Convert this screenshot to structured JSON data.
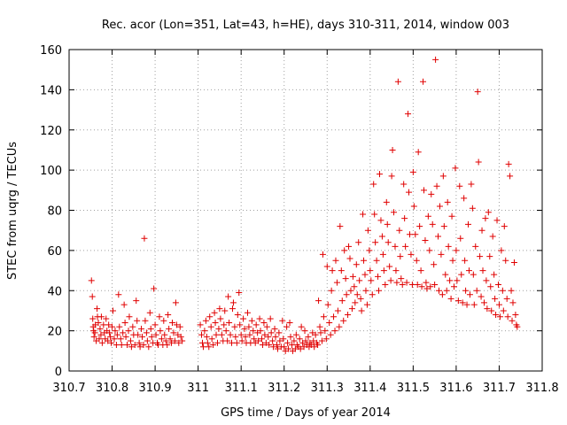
{
  "chart_data": {
    "type": "scatter",
    "title": "Rec. acor (Lon=351, Lat=43, h=HE), days 310-311, 2014, window 003",
    "xlabel": "GPS time / Days of year 2014",
    "ylabel": "STEC from uqrg / TECUs",
    "xlim": [
      310.7,
      311.8
    ],
    "ylim": [
      0,
      160
    ],
    "xticks": [
      310.7,
      310.8,
      310.9,
      311,
      311.1,
      311.2,
      311.3,
      311.4,
      311.5,
      311.6,
      311.7,
      311.8
    ],
    "xtick_labels": [
      "310.7",
      "310.8",
      "310.9",
      "311",
      "311.1",
      "311.2",
      "311.3",
      "311.4",
      "311.5",
      "311.6",
      "311.7",
      "311.8"
    ],
    "yticks": [
      0,
      20,
      40,
      60,
      80,
      100,
      120,
      140,
      160
    ],
    "ytick_labels": [
      "0",
      "20",
      "40",
      "60",
      "80",
      "100",
      "120",
      "140",
      "160"
    ],
    "grid": true,
    "marker": "plus",
    "color": "#e00000",
    "points": [
      [
        310.752,
        45
      ],
      [
        310.754,
        37
      ],
      [
        310.755,
        26
      ],
      [
        310.756,
        22
      ],
      [
        310.757,
        20
      ],
      [
        310.758,
        17
      ],
      [
        310.76,
        19
      ],
      [
        310.761,
        23
      ],
      [
        310.763,
        15
      ],
      [
        310.765,
        31
      ],
      [
        310.766,
        27
      ],
      [
        310.768,
        24
      ],
      [
        310.77,
        16
      ],
      [
        310.772,
        21
      ],
      [
        310.774,
        18
      ],
      [
        310.775,
        27
      ],
      [
        310.777,
        14
      ],
      [
        310.78,
        23
      ],
      [
        310.782,
        19
      ],
      [
        310.784,
        16
      ],
      [
        310.786,
        26
      ],
      [
        310.788,
        20
      ],
      [
        310.79,
        15
      ],
      [
        310.792,
        23
      ],
      [
        310.794,
        19
      ],
      [
        310.796,
        17
      ],
      [
        310.798,
        14
      ],
      [
        310.8,
        22
      ],
      [
        310.802,
        30
      ],
      [
        310.805,
        16
      ],
      [
        310.807,
        20
      ],
      [
        310.81,
        13
      ],
      [
        310.812,
        18
      ],
      [
        310.815,
        38
      ],
      [
        310.817,
        22
      ],
      [
        310.82,
        16
      ],
      [
        310.822,
        13
      ],
      [
        310.825,
        19
      ],
      [
        310.828,
        33
      ],
      [
        310.83,
        24
      ],
      [
        310.832,
        17
      ],
      [
        310.835,
        13
      ],
      [
        310.838,
        20
      ],
      [
        310.84,
        27
      ],
      [
        310.843,
        15
      ],
      [
        310.845,
        12
      ],
      [
        310.848,
        22
      ],
      [
        310.85,
        18
      ],
      [
        310.853,
        13
      ],
      [
        310.856,
        35
      ],
      [
        310.858,
        25
      ],
      [
        310.86,
        18
      ],
      [
        310.863,
        14
      ],
      [
        310.865,
        12
      ],
      [
        310.868,
        21
      ],
      [
        310.87,
        17
      ],
      [
        310.873,
        13
      ],
      [
        310.875,
        66
      ],
      [
        310.877,
        25
      ],
      [
        310.88,
        19
      ],
      [
        310.882,
        15
      ],
      [
        310.885,
        12
      ],
      [
        310.888,
        29
      ],
      [
        310.89,
        21
      ],
      [
        310.892,
        17
      ],
      [
        310.895,
        14
      ],
      [
        310.897,
        41
      ],
      [
        310.9,
        23
      ],
      [
        310.902,
        18
      ],
      [
        310.905,
        14
      ],
      [
        310.907,
        13
      ],
      [
        310.91,
        27
      ],
      [
        310.912,
        20
      ],
      [
        310.915,
        16
      ],
      [
        310.918,
        13
      ],
      [
        310.92,
        25
      ],
      [
        310.922,
        18
      ],
      [
        310.925,
        15
      ],
      [
        310.928,
        13
      ],
      [
        310.93,
        28
      ],
      [
        310.932,
        21
      ],
      [
        310.935,
        16
      ],
      [
        310.938,
        14
      ],
      [
        310.94,
        24
      ],
      [
        310.943,
        19
      ],
      [
        310.946,
        15
      ],
      [
        310.948,
        34
      ],
      [
        310.95,
        23
      ],
      [
        310.953,
        18
      ],
      [
        310.955,
        14
      ],
      [
        310.958,
        22
      ],
      [
        310.96,
        17
      ],
      [
        310.963,
        15
      ],
      [
        311.005,
        23
      ],
      [
        311.008,
        18
      ],
      [
        311.01,
        14
      ],
      [
        311.012,
        12
      ],
      [
        311.015,
        20
      ],
      [
        311.018,
        25
      ],
      [
        311.02,
        17
      ],
      [
        311.022,
        14
      ],
      [
        311.025,
        12
      ],
      [
        311.027,
        27
      ],
      [
        311.03,
        22
      ],
      [
        311.032,
        16
      ],
      [
        311.035,
        13
      ],
      [
        311.038,
        29
      ],
      [
        311.04,
        24
      ],
      [
        311.042,
        18
      ],
      [
        311.045,
        14
      ],
      [
        311.048,
        21
      ],
      [
        311.05,
        31
      ],
      [
        311.052,
        26
      ],
      [
        311.055,
        18
      ],
      [
        311.058,
        15
      ],
      [
        311.06,
        23
      ],
      [
        311.062,
        30
      ],
      [
        311.065,
        20
      ],
      [
        311.068,
        15
      ],
      [
        311.07,
        37
      ],
      [
        311.072,
        24
      ],
      [
        311.075,
        18
      ],
      [
        311.078,
        14
      ],
      [
        311.08,
        31
      ],
      [
        311.082,
        34
      ],
      [
        311.085,
        22
      ],
      [
        311.087,
        17
      ],
      [
        311.09,
        14
      ],
      [
        311.092,
        28
      ],
      [
        311.095,
        39
      ],
      [
        311.097,
        23
      ],
      [
        311.1,
        18
      ],
      [
        311.102,
        15
      ],
      [
        311.105,
        26
      ],
      [
        311.108,
        21
      ],
      [
        311.11,
        17
      ],
      [
        311.112,
        14
      ],
      [
        311.115,
        29
      ],
      [
        311.118,
        22
      ],
      [
        311.12,
        18
      ],
      [
        311.122,
        14
      ],
      [
        311.125,
        25
      ],
      [
        311.128,
        20
      ],
      [
        311.13,
        16
      ],
      [
        311.133,
        14
      ],
      [
        311.135,
        23
      ],
      [
        311.138,
        19
      ],
      [
        311.14,
        15
      ],
      [
        311.143,
        26
      ],
      [
        311.145,
        20
      ],
      [
        311.148,
        16
      ],
      [
        311.15,
        13
      ],
      [
        311.153,
        24
      ],
      [
        311.155,
        18
      ],
      [
        311.158,
        14
      ],
      [
        311.16,
        22
      ],
      [
        311.163,
        17
      ],
      [
        311.165,
        13
      ],
      [
        311.168,
        26
      ],
      [
        311.17,
        19
      ],
      [
        311.173,
        15
      ],
      [
        311.175,
        12
      ],
      [
        311.178,
        21
      ],
      [
        311.18,
        17
      ],
      [
        311.183,
        13
      ],
      [
        311.185,
        11
      ],
      [
        311.188,
        19
      ],
      [
        311.19,
        15
      ],
      [
        311.193,
        12
      ],
      [
        311.196,
        25
      ],
      [
        311.198,
        16
      ],
      [
        311.2,
        12
      ],
      [
        311.203,
        10
      ],
      [
        311.206,
        22
      ],
      [
        311.208,
        14
      ],
      [
        311.21,
        11
      ],
      [
        311.213,
        24
      ],
      [
        311.215,
        17
      ],
      [
        311.218,
        13
      ],
      [
        311.22,
        10
      ],
      [
        311.223,
        15
      ],
      [
        311.226,
        11
      ],
      [
        311.228,
        18
      ],
      [
        311.23,
        13
      ],
      [
        311.233,
        12
      ],
      [
        311.236,
        16
      ],
      [
        311.238,
        11
      ],
      [
        311.24,
        22
      ],
      [
        311.243,
        14
      ],
      [
        311.246,
        12
      ],
      [
        311.248,
        20
      ],
      [
        311.25,
        15
      ],
      [
        311.253,
        13
      ],
      [
        311.256,
        17
      ],
      [
        311.258,
        12
      ],
      [
        311.26,
        14
      ],
      [
        311.263,
        13
      ],
      [
        311.266,
        19
      ],
      [
        311.268,
        15
      ],
      [
        311.27,
        12
      ],
      [
        311.273,
        18
      ],
      [
        311.276,
        14
      ],
      [
        311.278,
        13
      ],
      [
        311.28,
        35
      ],
      [
        311.283,
        22
      ],
      [
        311.285,
        19
      ],
      [
        311.288,
        15
      ],
      [
        311.29,
        58
      ],
      [
        311.292,
        27
      ],
      [
        311.295,
        20
      ],
      [
        311.298,
        16
      ],
      [
        311.3,
        52
      ],
      [
        311.302,
        33
      ],
      [
        311.305,
        24
      ],
      [
        311.308,
        18
      ],
      [
        311.31,
        40
      ],
      [
        311.312,
        50
      ],
      [
        311.315,
        27
      ],
      [
        311.318,
        20
      ],
      [
        311.32,
        55
      ],
      [
        311.323,
        44
      ],
      [
        311.325,
        30
      ],
      [
        311.328,
        22
      ],
      [
        311.33,
        72
      ],
      [
        311.333,
        50
      ],
      [
        311.335,
        35
      ],
      [
        311.338,
        25
      ],
      [
        311.34,
        60
      ],
      [
        311.343,
        46
      ],
      [
        311.345,
        38
      ],
      [
        311.348,
        28
      ],
      [
        311.35,
        62
      ],
      [
        311.353,
        56
      ],
      [
        311.355,
        40
      ],
      [
        311.358,
        31
      ],
      [
        311.36,
        47
      ],
      [
        311.363,
        42
      ],
      [
        311.365,
        34
      ],
      [
        311.368,
        53
      ],
      [
        311.37,
        38
      ],
      [
        311.373,
        64
      ],
      [
        311.375,
        45
      ],
      [
        311.378,
        36
      ],
      [
        311.38,
        30
      ],
      [
        311.383,
        78
      ],
      [
        311.385,
        55
      ],
      [
        311.388,
        48
      ],
      [
        311.39,
        40
      ],
      [
        311.393,
        33
      ],
      [
        311.395,
        70
      ],
      [
        311.398,
        60
      ],
      [
        311.4,
        50
      ],
      [
        311.402,
        45
      ],
      [
        311.405,
        38
      ],
      [
        311.408,
        93
      ],
      [
        311.41,
        78
      ],
      [
        311.412,
        64
      ],
      [
        311.415,
        55
      ],
      [
        311.418,
        47
      ],
      [
        311.42,
        40
      ],
      [
        311.422,
        98
      ],
      [
        311.425,
        75
      ],
      [
        311.428,
        67
      ],
      [
        311.43,
        58
      ],
      [
        311.432,
        50
      ],
      [
        311.435,
        43
      ],
      [
        311.438,
        84
      ],
      [
        311.44,
        73
      ],
      [
        311.442,
        64
      ],
      [
        311.445,
        52
      ],
      [
        311.448,
        45
      ],
      [
        311.45,
        97
      ],
      [
        311.452,
        110
      ],
      [
        311.455,
        79
      ],
      [
        311.458,
        62
      ],
      [
        311.46,
        50
      ],
      [
        311.462,
        44
      ],
      [
        311.465,
        144
      ],
      [
        311.468,
        70
      ],
      [
        311.47,
        57
      ],
      [
        311.472,
        46
      ],
      [
        311.475,
        43
      ],
      [
        311.478,
        93
      ],
      [
        311.48,
        76
      ],
      [
        311.482,
        62
      ],
      [
        311.485,
        44
      ],
      [
        311.488,
        128
      ],
      [
        311.49,
        89
      ],
      [
        311.492,
        68
      ],
      [
        311.495,
        58
      ],
      [
        311.498,
        43
      ],
      [
        311.5,
        99
      ],
      [
        311.502,
        82
      ],
      [
        311.505,
        68
      ],
      [
        311.508,
        55
      ],
      [
        311.51,
        43
      ],
      [
        311.512,
        109
      ],
      [
        311.515,
        72
      ],
      [
        311.518,
        50
      ],
      [
        311.52,
        42
      ],
      [
        311.523,
        144
      ],
      [
        311.525,
        90
      ],
      [
        311.528,
        65
      ],
      [
        311.53,
        44
      ],
      [
        311.532,
        41
      ],
      [
        311.535,
        77
      ],
      [
        311.538,
        60
      ],
      [
        311.54,
        42
      ],
      [
        311.542,
        88
      ],
      [
        311.545,
        73
      ],
      [
        311.548,
        53
      ],
      [
        311.55,
        43
      ],
      [
        311.552,
        155
      ],
      [
        311.555,
        92
      ],
      [
        311.558,
        67
      ],
      [
        311.56,
        40
      ],
      [
        311.562,
        82
      ],
      [
        311.565,
        58
      ],
      [
        311.568,
        38
      ],
      [
        311.57,
        97
      ],
      [
        311.572,
        72
      ],
      [
        311.575,
        48
      ],
      [
        311.578,
        40
      ],
      [
        311.58,
        84
      ],
      [
        311.582,
        62
      ],
      [
        311.585,
        45
      ],
      [
        311.588,
        36
      ],
      [
        311.59,
        77
      ],
      [
        311.592,
        55
      ],
      [
        311.595,
        42
      ],
      [
        311.598,
        101
      ],
      [
        311.6,
        60
      ],
      [
        311.602,
        45
      ],
      [
        311.605,
        35
      ],
      [
        311.608,
        92
      ],
      [
        311.61,
        66
      ],
      [
        311.612,
        48
      ],
      [
        311.615,
        34
      ],
      [
        311.618,
        86
      ],
      [
        311.62,
        55
      ],
      [
        311.622,
        40
      ],
      [
        311.625,
        33
      ],
      [
        311.628,
        73
      ],
      [
        311.63,
        50
      ],
      [
        311.632,
        38
      ],
      [
        311.635,
        93
      ],
      [
        311.638,
        81
      ],
      [
        311.64,
        48
      ],
      [
        311.642,
        33
      ],
      [
        311.645,
        62
      ],
      [
        311.648,
        40
      ],
      [
        311.65,
        139
      ],
      [
        311.652,
        104
      ],
      [
        311.655,
        57
      ],
      [
        311.658,
        37
      ],
      [
        311.66,
        70
      ],
      [
        311.662,
        50
      ],
      [
        311.665,
        34
      ],
      [
        311.668,
        76
      ],
      [
        311.67,
        45
      ],
      [
        311.672,
        31
      ],
      [
        311.675,
        79
      ],
      [
        311.678,
        57
      ],
      [
        311.68,
        42
      ],
      [
        311.682,
        30
      ],
      [
        311.685,
        67
      ],
      [
        311.688,
        48
      ],
      [
        311.69,
        36
      ],
      [
        311.692,
        28
      ],
      [
        311.695,
        75
      ],
      [
        311.698,
        43
      ],
      [
        311.7,
        33
      ],
      [
        311.702,
        27
      ],
      [
        311.705,
        60
      ],
      [
        311.708,
        40
      ],
      [
        311.71,
        30
      ],
      [
        311.712,
        72
      ],
      [
        311.715,
        55
      ],
      [
        311.718,
        36
      ],
      [
        311.72,
        27
      ],
      [
        311.722,
        103
      ],
      [
        311.725,
        97
      ],
      [
        311.728,
        40
      ],
      [
        311.73,
        25
      ],
      [
        311.732,
        34
      ],
      [
        311.735,
        54
      ],
      [
        311.738,
        28
      ],
      [
        311.74,
        23
      ],
      [
        311.742,
        22
      ]
    ]
  }
}
